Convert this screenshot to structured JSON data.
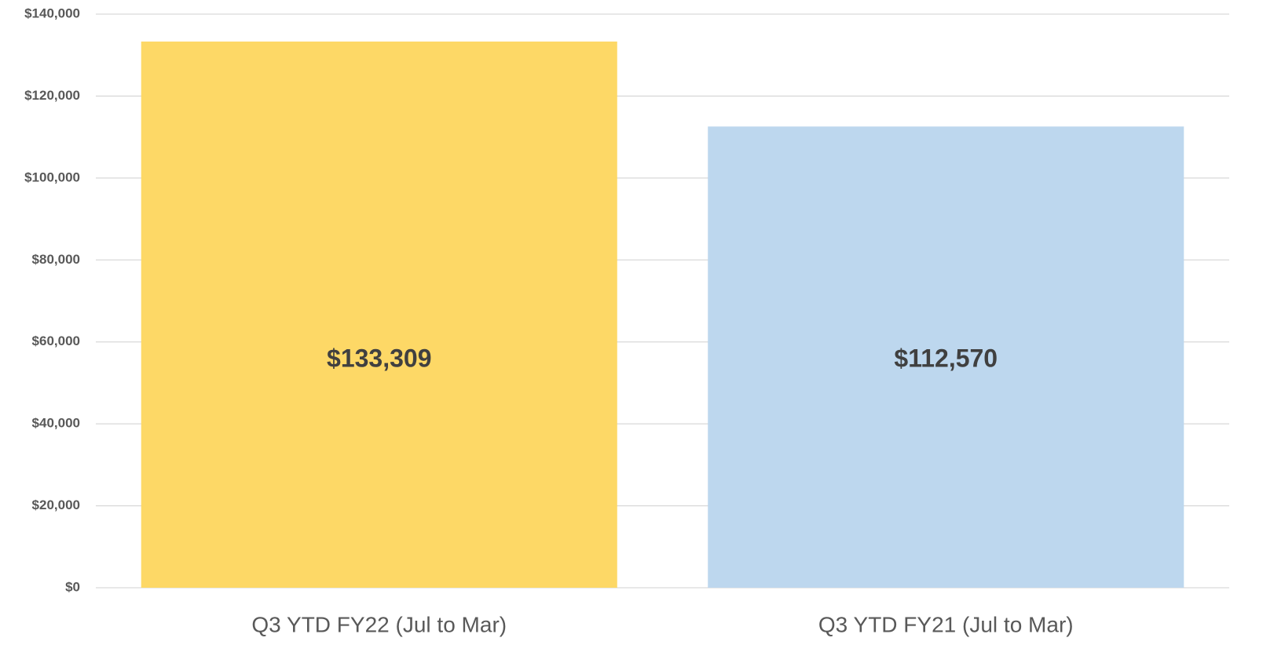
{
  "chart_data": {
    "type": "bar",
    "categories": [
      "Q3 YTD FY22 (Jul to Mar)",
      "Q3 YTD FY21 (Jul to Mar)"
    ],
    "values": [
      133309,
      112570
    ],
    "value_labels": [
      "$133,309",
      "$112,570"
    ],
    "colors": [
      "#fdd866",
      "#bdd7ee"
    ],
    "ylim": [
      0,
      140000
    ],
    "yticks": [
      {
        "value": 0,
        "label": "$0"
      },
      {
        "value": 20000,
        "label": "$20,000"
      },
      {
        "value": 40000,
        "label": "$40,000"
      },
      {
        "value": 60000,
        "label": "$60,000"
      },
      {
        "value": 80000,
        "label": "$80,000"
      },
      {
        "value": 100000,
        "label": "$100,000"
      },
      {
        "value": 120000,
        "label": "$120,000"
      },
      {
        "value": 140000,
        "label": "$140,000"
      }
    ],
    "grid": true
  }
}
